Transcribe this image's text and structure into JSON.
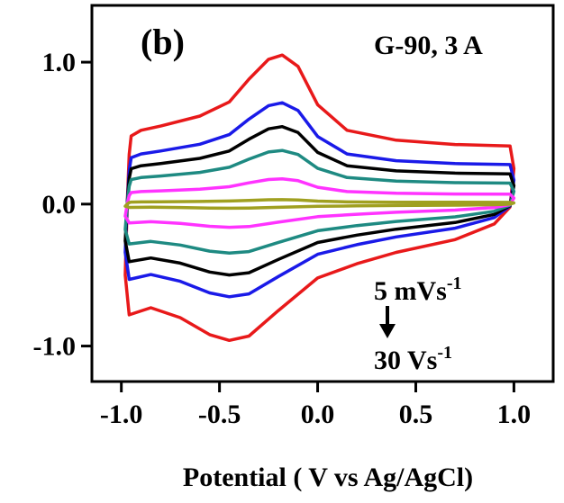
{
  "chart_data": {
    "type": "line",
    "panel_label": "(b)",
    "sample_label": "G-90, 3 A",
    "xlabel": "Potential ( V vs Ag/AgCl)",
    "ylabel": "",
    "xlim": [
      -1.15,
      1.2
    ],
    "ylim": [
      -1.25,
      1.4
    ],
    "x_ticks": [
      "-1.0",
      "-0.5",
      "0.0",
      "0.5",
      "1.0"
    ],
    "y_ticks": [
      "1.0",
      "0.0",
      "-1.0"
    ],
    "annotation_top": "5 mVs",
    "annotation_top_sup": "-1",
    "annotation_bottom": "30 Vs",
    "annotation_bottom_sup": "-1",
    "colors": [
      "#e8191a",
      "#1a1ae8",
      "#000000",
      "#1e8a82",
      "#ff33ff",
      "#a0a020"
    ],
    "series": [
      {
        "scale": 1.0,
        "color": "#e8191a"
      },
      {
        "scale": 0.68,
        "color": "#1a1ae8"
      },
      {
        "scale": 0.52,
        "color": "#000000"
      },
      {
        "scale": 0.36,
        "color": "#1e8a82"
      },
      {
        "scale": 0.17,
        "color": "#ff33ff"
      },
      {
        "scale": 0.03,
        "color": "#a0a020"
      }
    ],
    "base_anodic": [
      [
        -0.97,
        0.0
      ],
      [
        -0.96,
        0.35
      ],
      [
        -0.95,
        0.48
      ],
      [
        -0.9,
        0.52
      ],
      [
        -0.8,
        0.55
      ],
      [
        -0.6,
        0.62
      ],
      [
        -0.45,
        0.72
      ],
      [
        -0.35,
        0.88
      ],
      [
        -0.25,
        1.02
      ],
      [
        -0.18,
        1.05
      ],
      [
        -0.1,
        0.97
      ],
      [
        0.0,
        0.7
      ],
      [
        0.15,
        0.52
      ],
      [
        0.4,
        0.45
      ],
      [
        0.7,
        0.42
      ],
      [
        0.98,
        0.41
      ],
      [
        1.0,
        0.25
      ]
    ],
    "base_cathodic": [
      [
        1.0,
        0.25
      ],
      [
        0.98,
        -0.02
      ],
      [
        0.9,
        -0.14
      ],
      [
        0.7,
        -0.25
      ],
      [
        0.4,
        -0.34
      ],
      [
        0.2,
        -0.42
      ],
      [
        0.0,
        -0.52
      ],
      [
        -0.2,
        -0.75
      ],
      [
        -0.35,
        -0.93
      ],
      [
        -0.45,
        -0.96
      ],
      [
        -0.55,
        -0.92
      ],
      [
        -0.7,
        -0.8
      ],
      [
        -0.85,
        -0.73
      ],
      [
        -0.96,
        -0.78
      ],
      [
        -0.98,
        -0.5
      ],
      [
        -0.97,
        0.0
      ]
    ]
  }
}
